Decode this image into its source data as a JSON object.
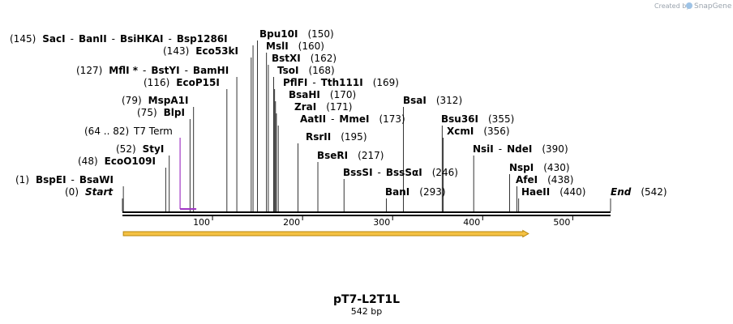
{
  "watermark": {
    "prefix": "Created by",
    "brand": "SnapGene"
  },
  "plasmid": {
    "name": "pT7-L2T1L",
    "length_label": "542 bp",
    "length": 542
  },
  "ruler": {
    "ticks": [
      100,
      200,
      300,
      400,
      500
    ]
  },
  "feature": {
    "name": "T7 Term",
    "range": "(64 .. 82)",
    "start": 64,
    "end": 82,
    "color": "#a035c4"
  },
  "orf": {
    "start": 1,
    "end": 450,
    "fill": "#f5c243",
    "stroke": "#b8860b"
  },
  "rows": [
    {
      "pos": 145,
      "line": "(145)",
      "names": [
        "SacI",
        "BanII",
        "BsiHKAI",
        "Bsp1286I"
      ]
    },
    {
      "pos": 150,
      "line": "(150)",
      "names": [
        "Bpu10I"
      ]
    },
    {
      "pos": 143,
      "line": "(143)",
      "names": [
        "Eco53kI"
      ]
    },
    {
      "pos": 160,
      "line": "(160)",
      "names": [
        "MslI"
      ]
    },
    {
      "pos": 162,
      "line": "(162)",
      "names": [
        "BstXI"
      ]
    },
    {
      "pos": 127,
      "line": "(127)",
      "names": [
        "MflI *",
        "BstYI",
        "BamHI"
      ]
    },
    {
      "pos": 168,
      "line": "(168)",
      "names": [
        "TsoI"
      ]
    },
    {
      "pos": 116,
      "line": "(116)",
      "names": [
        "EcoP15I"
      ]
    },
    {
      "pos": 169,
      "line": "(169)",
      "names": [
        "PflFI",
        "Tth111I"
      ]
    },
    {
      "pos": 170,
      "line": "(170)",
      "names": [
        "BsaHI"
      ]
    },
    {
      "pos": 312,
      "line": "(312)",
      "names": [
        "BsaI"
      ]
    },
    {
      "pos": 79,
      "line": "(79)",
      "names": [
        "MspA1I"
      ]
    },
    {
      "pos": 171,
      "line": "(171)",
      "names": [
        "ZraI"
      ]
    },
    {
      "pos": 75,
      "line": "(75)",
      "names": [
        "BlpI"
      ]
    },
    {
      "pos": 173,
      "line": "(173)",
      "names": [
        "AatII",
        "MmeI"
      ]
    },
    {
      "pos": 355,
      "line": "(355)",
      "names": [
        "Bsu36I"
      ]
    },
    {
      "pos": 356,
      "line": "(356)",
      "names": [
        "XcmI"
      ]
    },
    {
      "pos": 195,
      "line": "(195)",
      "names": [
        "RsrII"
      ]
    },
    {
      "pos": 52,
      "line": "(52)",
      "names": [
        "StyI"
      ]
    },
    {
      "pos": 390,
      "line": "(390)",
      "names": [
        "NsiI",
        "NdeI"
      ]
    },
    {
      "pos": 217,
      "line": "(217)",
      "names": [
        "BseRI"
      ]
    },
    {
      "pos": 48,
      "line": "(48)",
      "names": [
        "EcoO109I"
      ]
    },
    {
      "pos": 430,
      "line": "(430)",
      "names": [
        "NspI"
      ]
    },
    {
      "pos": 246,
      "line": "(246)",
      "names": [
        "BssSI",
        "BssSαI"
      ]
    },
    {
      "pos": 1,
      "line": "(1)",
      "names": [
        "BspEI",
        "BsaWI"
      ]
    },
    {
      "pos": 438,
      "line": "(438)",
      "names": [
        "AfeI"
      ]
    },
    {
      "pos": 0,
      "line": "(0)",
      "names": [
        "Start"
      ]
    },
    {
      "pos": 293,
      "line": "(293)",
      "names": [
        "BanI"
      ]
    },
    {
      "pos": 440,
      "line": "(440)",
      "names": [
        "HaeII"
      ]
    },
    {
      "pos": 542,
      "line": "(542)",
      "names": [
        "End"
      ]
    }
  ]
}
